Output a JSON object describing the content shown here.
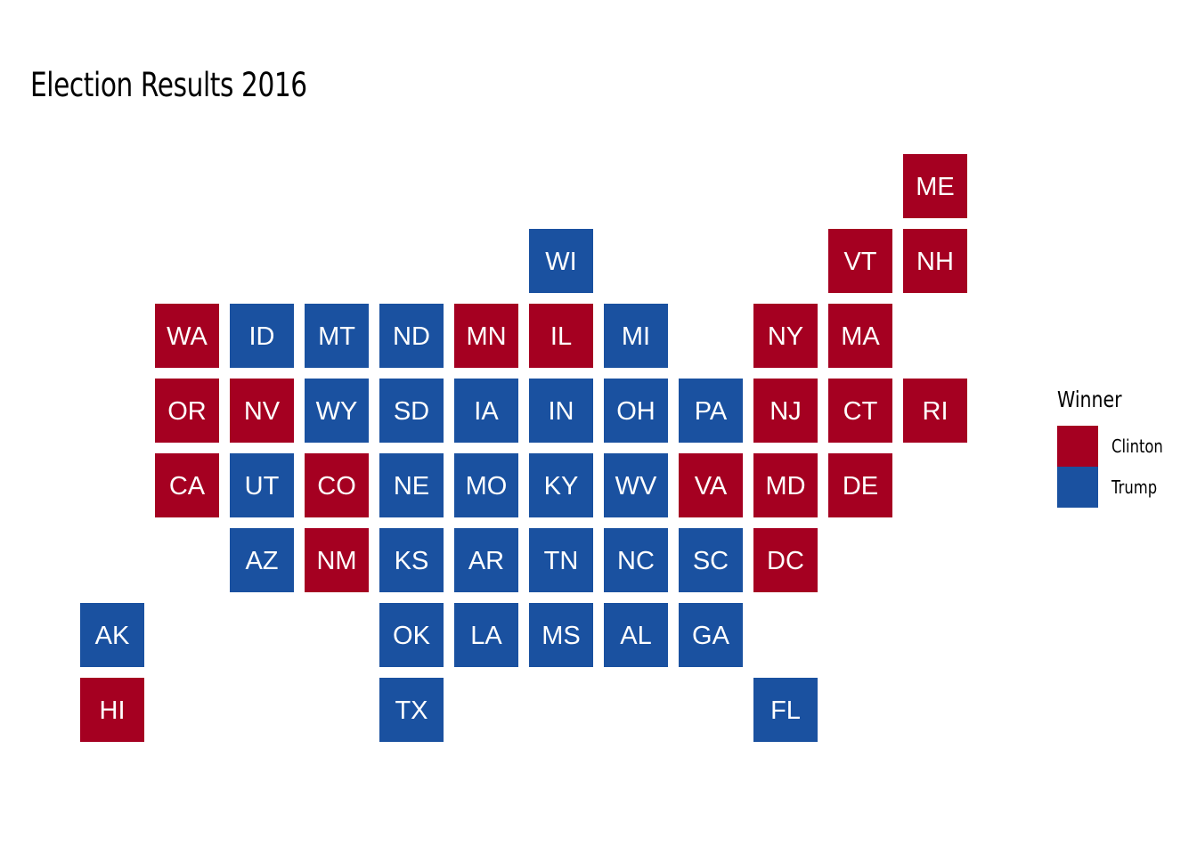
{
  "chart_data": {
    "type": "heatmap",
    "title": "Election Results 2016",
    "legend": {
      "title": "Winner",
      "placement": "right",
      "entries": [
        {
          "name": "Clinton",
          "color": "#A50021"
        },
        {
          "name": "Trump",
          "color": "#1A51A0"
        }
      ]
    },
    "grid": false,
    "tiles": [
      {
        "state": "ME",
        "col": 12,
        "row": 1,
        "winner": "Clinton"
      },
      {
        "state": "WI",
        "col": 7,
        "row": 2,
        "winner": "Trump"
      },
      {
        "state": "VT",
        "col": 11,
        "row": 2,
        "winner": "Clinton"
      },
      {
        "state": "NH",
        "col": 12,
        "row": 2,
        "winner": "Clinton"
      },
      {
        "state": "WA",
        "col": 2,
        "row": 3,
        "winner": "Clinton"
      },
      {
        "state": "ID",
        "col": 3,
        "row": 3,
        "winner": "Trump"
      },
      {
        "state": "MT",
        "col": 4,
        "row": 3,
        "winner": "Trump"
      },
      {
        "state": "ND",
        "col": 5,
        "row": 3,
        "winner": "Trump"
      },
      {
        "state": "MN",
        "col": 6,
        "row": 3,
        "winner": "Clinton"
      },
      {
        "state": "IL",
        "col": 7,
        "row": 3,
        "winner": "Clinton"
      },
      {
        "state": "MI",
        "col": 8,
        "row": 3,
        "winner": "Trump"
      },
      {
        "state": "NY",
        "col": 10,
        "row": 3,
        "winner": "Clinton"
      },
      {
        "state": "MA",
        "col": 11,
        "row": 3,
        "winner": "Clinton"
      },
      {
        "state": "OR",
        "col": 2,
        "row": 4,
        "winner": "Clinton"
      },
      {
        "state": "NV",
        "col": 3,
        "row": 4,
        "winner": "Clinton"
      },
      {
        "state": "WY",
        "col": 4,
        "row": 4,
        "winner": "Trump"
      },
      {
        "state": "SD",
        "col": 5,
        "row": 4,
        "winner": "Trump"
      },
      {
        "state": "IA",
        "col": 6,
        "row": 4,
        "winner": "Trump"
      },
      {
        "state": "IN",
        "col": 7,
        "row": 4,
        "winner": "Trump"
      },
      {
        "state": "OH",
        "col": 8,
        "row": 4,
        "winner": "Trump"
      },
      {
        "state": "PA",
        "col": 9,
        "row": 4,
        "winner": "Trump"
      },
      {
        "state": "NJ",
        "col": 10,
        "row": 4,
        "winner": "Clinton"
      },
      {
        "state": "CT",
        "col": 11,
        "row": 4,
        "winner": "Clinton"
      },
      {
        "state": "RI",
        "col": 12,
        "row": 4,
        "winner": "Clinton"
      },
      {
        "state": "CA",
        "col": 2,
        "row": 5,
        "winner": "Clinton"
      },
      {
        "state": "UT",
        "col": 3,
        "row": 5,
        "winner": "Trump"
      },
      {
        "state": "CO",
        "col": 4,
        "row": 5,
        "winner": "Clinton"
      },
      {
        "state": "NE",
        "col": 5,
        "row": 5,
        "winner": "Trump"
      },
      {
        "state": "MO",
        "col": 6,
        "row": 5,
        "winner": "Trump"
      },
      {
        "state": "KY",
        "col": 7,
        "row": 5,
        "winner": "Trump"
      },
      {
        "state": "WV",
        "col": 8,
        "row": 5,
        "winner": "Trump"
      },
      {
        "state": "VA",
        "col": 9,
        "row": 5,
        "winner": "Clinton"
      },
      {
        "state": "MD",
        "col": 10,
        "row": 5,
        "winner": "Clinton"
      },
      {
        "state": "DE",
        "col": 11,
        "row": 5,
        "winner": "Clinton"
      },
      {
        "state": "AZ",
        "col": 3,
        "row": 6,
        "winner": "Trump"
      },
      {
        "state": "NM",
        "col": 4,
        "row": 6,
        "winner": "Clinton"
      },
      {
        "state": "KS",
        "col": 5,
        "row": 6,
        "winner": "Trump"
      },
      {
        "state": "AR",
        "col": 6,
        "row": 6,
        "winner": "Trump"
      },
      {
        "state": "TN",
        "col": 7,
        "row": 6,
        "winner": "Trump"
      },
      {
        "state": "NC",
        "col": 8,
        "row": 6,
        "winner": "Trump"
      },
      {
        "state": "SC",
        "col": 9,
        "row": 6,
        "winner": "Trump"
      },
      {
        "state": "DC",
        "col": 10,
        "row": 6,
        "winner": "Clinton"
      },
      {
        "state": "AK",
        "col": 1,
        "row": 7,
        "winner": "Trump"
      },
      {
        "state": "OK",
        "col": 5,
        "row": 7,
        "winner": "Trump"
      },
      {
        "state": "LA",
        "col": 6,
        "row": 7,
        "winner": "Trump"
      },
      {
        "state": "MS",
        "col": 7,
        "row": 7,
        "winner": "Trump"
      },
      {
        "state": "AL",
        "col": 8,
        "row": 7,
        "winner": "Trump"
      },
      {
        "state": "GA",
        "col": 9,
        "row": 7,
        "winner": "Trump"
      },
      {
        "state": "HI",
        "col": 1,
        "row": 8,
        "winner": "Clinton"
      },
      {
        "state": "TX",
        "col": 5,
        "row": 8,
        "winner": "Trump"
      },
      {
        "state": "FL",
        "col": 10,
        "row": 8,
        "winner": "Trump"
      }
    ]
  }
}
